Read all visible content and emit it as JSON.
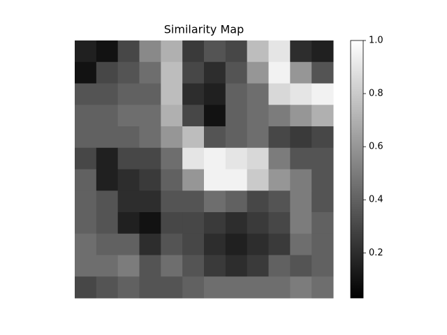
{
  "chart_data": {
    "type": "heatmap",
    "title": "Similarity Map",
    "colormap": "gray",
    "z": [
      [
        0.15,
        0.1,
        0.3,
        0.55,
        0.7,
        0.25,
        0.35,
        0.3,
        0.75,
        0.9,
        0.2,
        0.15
      ],
      [
        0.1,
        0.3,
        0.35,
        0.45,
        0.75,
        0.3,
        0.2,
        0.35,
        0.6,
        0.95,
        0.6,
        0.35
      ],
      [
        0.35,
        0.35,
        0.4,
        0.4,
        0.75,
        0.2,
        0.15,
        0.4,
        0.45,
        0.85,
        0.9,
        0.95
      ],
      [
        0.4,
        0.4,
        0.45,
        0.45,
        0.7,
        0.3,
        0.1,
        0.4,
        0.45,
        0.5,
        0.6,
        0.7
      ],
      [
        0.4,
        0.4,
        0.4,
        0.45,
        0.6,
        0.75,
        0.35,
        0.4,
        0.45,
        0.3,
        0.25,
        0.3
      ],
      [
        0.3,
        0.15,
        0.3,
        0.3,
        0.45,
        0.9,
        0.95,
        0.9,
        0.85,
        0.5,
        0.35,
        0.35
      ],
      [
        0.4,
        0.15,
        0.2,
        0.25,
        0.4,
        0.6,
        0.95,
        0.95,
        0.8,
        0.6,
        0.5,
        0.35
      ],
      [
        0.4,
        0.35,
        0.2,
        0.2,
        0.35,
        0.35,
        0.45,
        0.4,
        0.3,
        0.35,
        0.5,
        0.35
      ],
      [
        0.4,
        0.35,
        0.15,
        0.1,
        0.3,
        0.3,
        0.25,
        0.2,
        0.25,
        0.3,
        0.5,
        0.4
      ],
      [
        0.45,
        0.4,
        0.4,
        0.2,
        0.35,
        0.3,
        0.2,
        0.15,
        0.2,
        0.25,
        0.45,
        0.4
      ],
      [
        0.45,
        0.45,
        0.5,
        0.35,
        0.45,
        0.35,
        0.25,
        0.2,
        0.25,
        0.4,
        0.35,
        0.4
      ],
      [
        0.3,
        0.35,
        0.4,
        0.35,
        0.35,
        0.4,
        0.45,
        0.45,
        0.45,
        0.45,
        0.5,
        0.45
      ]
    ],
    "clim": [
      0.03,
      1
    ],
    "cticks": [
      0.2,
      0.4,
      0.6,
      0.8,
      {
        "value": 1,
        "label": "1.0"
      }
    ]
  }
}
